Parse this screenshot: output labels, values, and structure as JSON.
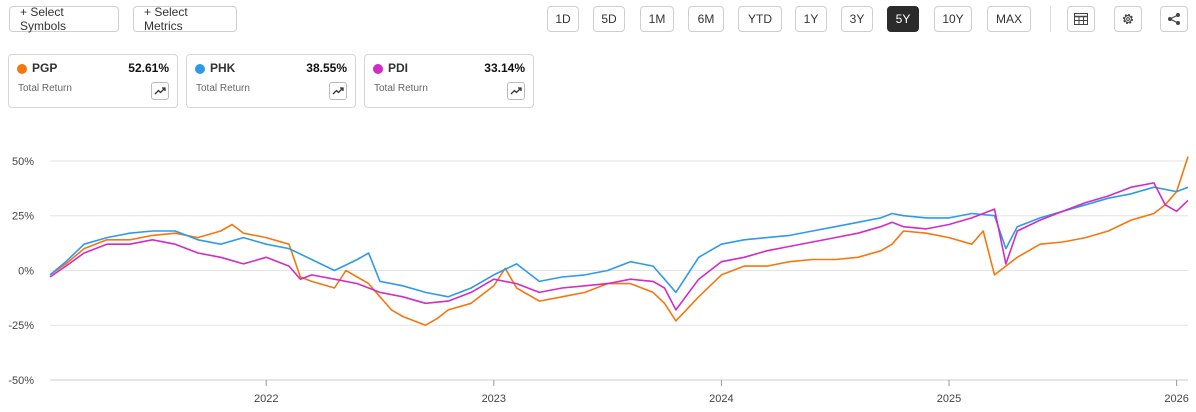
{
  "toolbar": {
    "select_symbols": "+ Select Symbols",
    "select_metrics": "+ Select Metrics",
    "periods": [
      "1D",
      "5D",
      "1M",
      "6M",
      "YTD",
      "1Y",
      "3Y",
      "5Y",
      "10Y",
      "MAX"
    ],
    "active_period": "5Y",
    "icons": [
      "table-icon",
      "gear-icon",
      "share-icon"
    ]
  },
  "cards": [
    {
      "symbol": "PGP",
      "value": "52.61%",
      "label": "Total Return",
      "color": "#f5770f"
    },
    {
      "symbol": "PHK",
      "value": "38.55%",
      "label": "Total Return",
      "color": "#2f9ae8"
    },
    {
      "symbol": "PDI",
      "value": "33.14%",
      "label": "Total Return",
      "color": "#d12cc6"
    }
  ],
  "chart_data": {
    "type": "line",
    "title": "",
    "xlabel": "",
    "ylabel": "",
    "ylim": [
      -50,
      55
    ],
    "xlim": [
      2021.05,
      2026.05
    ],
    "y_ticks": [
      50,
      25,
      0,
      -25,
      -50
    ],
    "y_tick_labels": [
      "50%",
      "25%",
      "0%",
      "-25%",
      "-50%"
    ],
    "x_ticks": [
      2022,
      2023,
      2024,
      2025,
      2026
    ],
    "x_tick_labels": [
      "2022",
      "2023",
      "2024",
      "2025",
      "2026"
    ],
    "grid": "horizontal",
    "series": [
      {
        "name": "PGP",
        "color": "#f5770f",
        "x": [
          2021.05,
          2021.12,
          2021.2,
          2021.3,
          2021.4,
          2021.5,
          2021.6,
          2021.7,
          2021.8,
          2021.85,
          2021.9,
          2022.0,
          2022.1,
          2022.15,
          2022.2,
          2022.3,
          2022.35,
          2022.45,
          2022.5,
          2022.55,
          2022.6,
          2022.7,
          2022.75,
          2022.8,
          2022.9,
          2023.0,
          2023.05,
          2023.1,
          2023.2,
          2023.3,
          2023.4,
          2023.5,
          2023.6,
          2023.7,
          2023.75,
          2023.8,
          2023.9,
          2024.0,
          2024.1,
          2024.2,
          2024.3,
          2024.4,
          2024.5,
          2024.6,
          2024.7,
          2024.75,
          2024.8,
          2024.9,
          2025.0,
          2025.1,
          2025.15,
          2025.2,
          2025.3,
          2025.4,
          2025.5,
          2025.6,
          2025.7,
          2025.8,
          2025.9,
          2025.95,
          2026.0,
          2026.05
        ],
        "y": [
          -2,
          3,
          10,
          14,
          14,
          16,
          17,
          15,
          18,
          21,
          17,
          15,
          12,
          -3,
          -5,
          -8,
          0,
          -6,
          -12,
          -18,
          -21,
          -25,
          -22,
          -18,
          -15,
          -7,
          1,
          -8,
          -14,
          -12,
          -10,
          -6,
          -6,
          -10,
          -15,
          -23,
          -12,
          -2,
          2,
          2,
          4,
          5,
          5,
          6,
          9,
          12,
          18,
          17,
          15,
          12,
          18,
          -2,
          6,
          12,
          13,
          15,
          18,
          23,
          26,
          30,
          36,
          52
        ]
      },
      {
        "name": "PHK",
        "color": "#2f9ae8",
        "x": [
          2021.05,
          2021.12,
          2021.2,
          2021.3,
          2021.4,
          2021.5,
          2021.6,
          2021.7,
          2021.8,
          2021.9,
          2022.0,
          2022.1,
          2022.2,
          2022.3,
          2022.4,
          2022.45,
          2022.5,
          2022.6,
          2022.7,
          2022.8,
          2022.9,
          2023.0,
          2023.1,
          2023.2,
          2023.3,
          2023.4,
          2023.5,
          2023.6,
          2023.7,
          2023.75,
          2023.8,
          2023.9,
          2024.0,
          2024.1,
          2024.2,
          2024.3,
          2024.4,
          2024.5,
          2024.6,
          2024.7,
          2024.75,
          2024.8,
          2024.9,
          2025.0,
          2025.1,
          2025.2,
          2025.25,
          2025.3,
          2025.4,
          2025.5,
          2025.6,
          2025.7,
          2025.8,
          2025.9,
          2026.0,
          2026.05
        ],
        "y": [
          -2,
          4,
          12,
          15,
          17,
          18,
          18,
          14,
          12,
          15,
          12,
          10,
          5,
          0,
          5,
          8,
          -5,
          -7,
          -10,
          -12,
          -8,
          -2,
          3,
          -5,
          -3,
          -2,
          0,
          4,
          2,
          -4,
          -10,
          6,
          12,
          14,
          15,
          16,
          18,
          20,
          22,
          24,
          26,
          25,
          24,
          24,
          26,
          25,
          10,
          20,
          24,
          27,
          30,
          33,
          35,
          38,
          36,
          38
        ]
      },
      {
        "name": "PDI",
        "color": "#d12cc6",
        "x": [
          2021.05,
          2021.12,
          2021.2,
          2021.3,
          2021.4,
          2021.5,
          2021.6,
          2021.7,
          2021.8,
          2021.9,
          2022.0,
          2022.1,
          2022.15,
          2022.2,
          2022.3,
          2022.4,
          2022.5,
          2022.6,
          2022.7,
          2022.8,
          2022.9,
          2023.0,
          2023.1,
          2023.2,
          2023.3,
          2023.4,
          2023.5,
          2023.6,
          2023.7,
          2023.75,
          2023.8,
          2023.9,
          2024.0,
          2024.1,
          2024.2,
          2024.3,
          2024.4,
          2024.5,
          2024.6,
          2024.7,
          2024.75,
          2024.8,
          2024.9,
          2025.0,
          2025.1,
          2025.2,
          2025.25,
          2025.3,
          2025.4,
          2025.5,
          2025.6,
          2025.7,
          2025.8,
          2025.9,
          2025.95,
          2026.0,
          2026.05
        ],
        "y": [
          -3,
          2,
          8,
          12,
          12,
          14,
          12,
          8,
          6,
          3,
          6,
          2,
          -4,
          -2,
          -4,
          -6,
          -10,
          -12,
          -15,
          -14,
          -10,
          -4,
          -6,
          -10,
          -8,
          -7,
          -6,
          -4,
          -5,
          -8,
          -18,
          -4,
          4,
          6,
          9,
          11,
          13,
          15,
          17,
          20,
          22,
          20,
          19,
          21,
          24,
          28,
          3,
          18,
          23,
          27,
          31,
          34,
          38,
          40,
          30,
          27,
          32
        ]
      }
    ]
  }
}
